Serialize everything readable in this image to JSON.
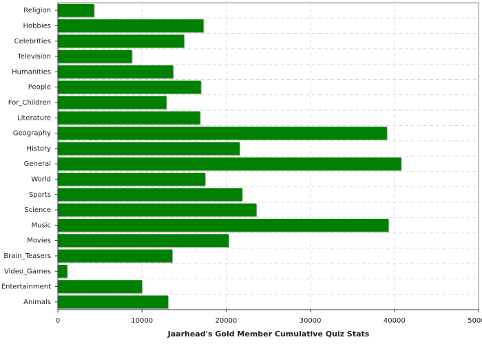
{
  "chart_data": {
    "type": "hbar",
    "xlabel": "Jaarhead's Gold Member Cumulative Quiz Stats",
    "categories": [
      "Religion",
      "Hobbies",
      "Celebrities",
      "Television",
      "Humanities",
      "People",
      "For_Children",
      "Literature",
      "Geography",
      "History",
      "General",
      "World",
      "Sports",
      "Science",
      "Music",
      "Movies",
      "Brain_Teasers",
      "Video_Games",
      "Entertainment",
      "Animals"
    ],
    "values": [
      4300,
      17300,
      15000,
      8800,
      13700,
      17000,
      12900,
      16900,
      39100,
      21600,
      40800,
      17500,
      21900,
      23600,
      39300,
      20300,
      13600,
      1100,
      10000,
      13100
    ],
    "color": "#008000",
    "xlim": [
      0,
      50000
    ],
    "xticks": [
      0,
      10000,
      20000,
      30000,
      40000,
      50000
    ],
    "grid": true
  }
}
